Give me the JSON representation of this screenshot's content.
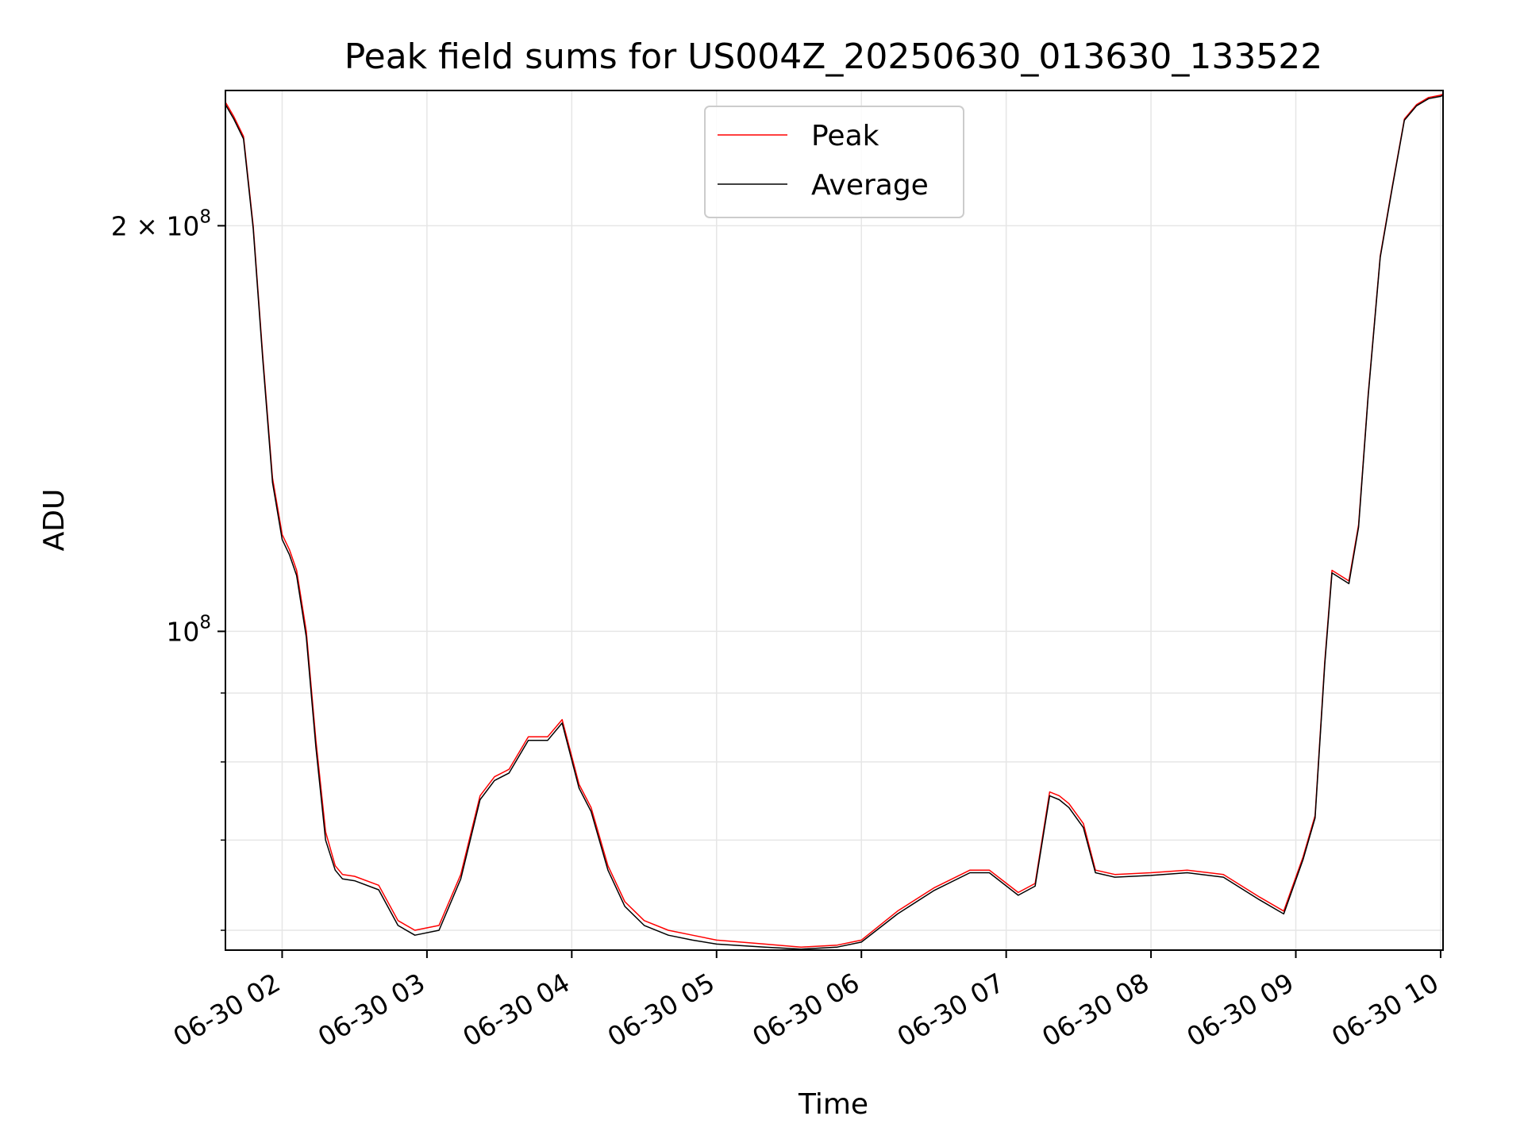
{
  "chart_data": {
    "type": "line",
    "title": "Peak field sums for US004Z_20250630_013630_133522",
    "xlabel": "Time",
    "ylabel": "ADU",
    "y_scale": "log",
    "ylim": [
      58000000,
      252000000
    ],
    "xlim": [
      "2025-06-30 01:36:30",
      "2025-06-30 10:01:00"
    ],
    "grid": true,
    "legend_position": "top-center",
    "x_ticks": [
      {
        "t": "2025-06-30 02:00",
        "label": "06-30 02"
      },
      {
        "t": "2025-06-30 03:00",
        "label": "06-30 03"
      },
      {
        "t": "2025-06-30 04:00",
        "label": "06-30 04"
      },
      {
        "t": "2025-06-30 05:00",
        "label": "06-30 05"
      },
      {
        "t": "2025-06-30 06:00",
        "label": "06-30 06"
      },
      {
        "t": "2025-06-30 07:00",
        "label": "06-30 07"
      },
      {
        "t": "2025-06-30 08:00",
        "label": "06-30 08"
      },
      {
        "t": "2025-06-30 09:00",
        "label": "06-30 09"
      },
      {
        "t": "2025-06-30 10:00",
        "label": "06-30 10"
      }
    ],
    "y_major_ticks": [
      {
        "v": 100000000,
        "base": "10",
        "exp": "8"
      },
      {
        "v": 200000000,
        "base": "2 × 10",
        "exp": "8"
      }
    ],
    "y_minor_ticks": [
      60000000,
      70000000,
      80000000,
      90000000
    ],
    "x": [
      "2025-06-30 01:36:30",
      "2025-06-30 01:40",
      "2025-06-30 01:44",
      "2025-06-30 01:48",
      "2025-06-30 01:52",
      "2025-06-30 01:56",
      "2025-06-30 02:00",
      "2025-06-30 02:03",
      "2025-06-30 02:06",
      "2025-06-30 02:10",
      "2025-06-30 02:14",
      "2025-06-30 02:18",
      "2025-06-30 02:22",
      "2025-06-30 02:25",
      "2025-06-30 02:30",
      "2025-06-30 02:40",
      "2025-06-30 02:48",
      "2025-06-30 02:55",
      "2025-06-30 03:05",
      "2025-06-30 03:14",
      "2025-06-30 03:22",
      "2025-06-30 03:28",
      "2025-06-30 03:34",
      "2025-06-30 03:42",
      "2025-06-30 03:50",
      "2025-06-30 03:56",
      "2025-06-30 04:03",
      "2025-06-30 04:08",
      "2025-06-30 04:15",
      "2025-06-30 04:22",
      "2025-06-30 04:30",
      "2025-06-30 04:40",
      "2025-06-30 04:50",
      "2025-06-30 05:00",
      "2025-06-30 05:20",
      "2025-06-30 05:35",
      "2025-06-30 05:50",
      "2025-06-30 06:00",
      "2025-06-30 06:15",
      "2025-06-30 06:30",
      "2025-06-30 06:45",
      "2025-06-30 06:53",
      "2025-06-30 07:05",
      "2025-06-30 07:12",
      "2025-06-30 07:18",
      "2025-06-30 07:22",
      "2025-06-30 07:26",
      "2025-06-30 07:32",
      "2025-06-30 07:37",
      "2025-06-30 07:45",
      "2025-06-30 08:00",
      "2025-06-30 08:15",
      "2025-06-30 08:30",
      "2025-06-30 08:45",
      "2025-06-30 08:55",
      "2025-06-30 09:03",
      "2025-06-30 09:08",
      "2025-06-30 09:12",
      "2025-06-30 09:15",
      "2025-06-30 09:22",
      "2025-06-30 09:26",
      "2025-06-30 09:30",
      "2025-06-30 09:35",
      "2025-06-30 09:40",
      "2025-06-30 09:45",
      "2025-06-30 09:50",
      "2025-06-30 09:55",
      "2025-06-30 10:00",
      "2025-06-30 10:01"
    ],
    "series": [
      {
        "name": "Peak",
        "color": "#ff0000",
        "values": [
          247000000,
          241000000,
          233000000,
          200000000,
          160000000,
          130000000,
          118000000,
          115000000,
          111000000,
          100000000,
          83000000,
          71000000,
          67000000,
          66000000,
          65800000,
          64800000,
          61000000,
          60000000,
          60500000,
          66000000,
          75500000,
          78000000,
          79000000,
          83500000,
          83500000,
          86000000,
          77000000,
          74000000,
          67000000,
          63000000,
          61000000,
          60000000,
          59500000,
          59000000,
          58600000,
          58300000,
          58500000,
          59000000,
          62000000,
          64500000,
          66500000,
          66500000,
          64000000,
          65000000,
          76000000,
          75500000,
          74500000,
          72000000,
          66500000,
          66000000,
          66200000,
          66500000,
          66000000,
          63500000,
          62000000,
          68000000,
          73000000,
          95000000,
          111000000,
          109000000,
          120000000,
          150000000,
          190000000,
          214000000,
          240000000,
          246000000,
          249000000,
          250000000,
          250500000
        ]
      },
      {
        "name": "Average",
        "color": "#000000",
        "values": [
          246000000,
          240000000,
          232000000,
          199000000,
          159000000,
          129000000,
          117000000,
          114000000,
          110000000,
          99000000,
          82000000,
          70000000,
          66500000,
          65500000,
          65300000,
          64300000,
          60500000,
          59500000,
          60000000,
          65500000,
          75000000,
          77500000,
          78500000,
          83000000,
          83000000,
          85500000,
          76500000,
          73500000,
          66500000,
          62500000,
          60500000,
          59500000,
          59000000,
          58600000,
          58300000,
          58100000,
          58300000,
          58800000,
          61700000,
          64200000,
          66200000,
          66200000,
          63700000,
          64700000,
          75500000,
          75000000,
          74000000,
          71500000,
          66200000,
          65700000,
          65900000,
          66200000,
          65700000,
          63200000,
          61700000,
          67700000,
          72700000,
          94500000,
          110500000,
          108500000,
          119500000,
          149500000,
          189500000,
          213500000,
          239500000,
          245500000,
          248500000,
          249500000,
          250000000
        ]
      }
    ]
  }
}
